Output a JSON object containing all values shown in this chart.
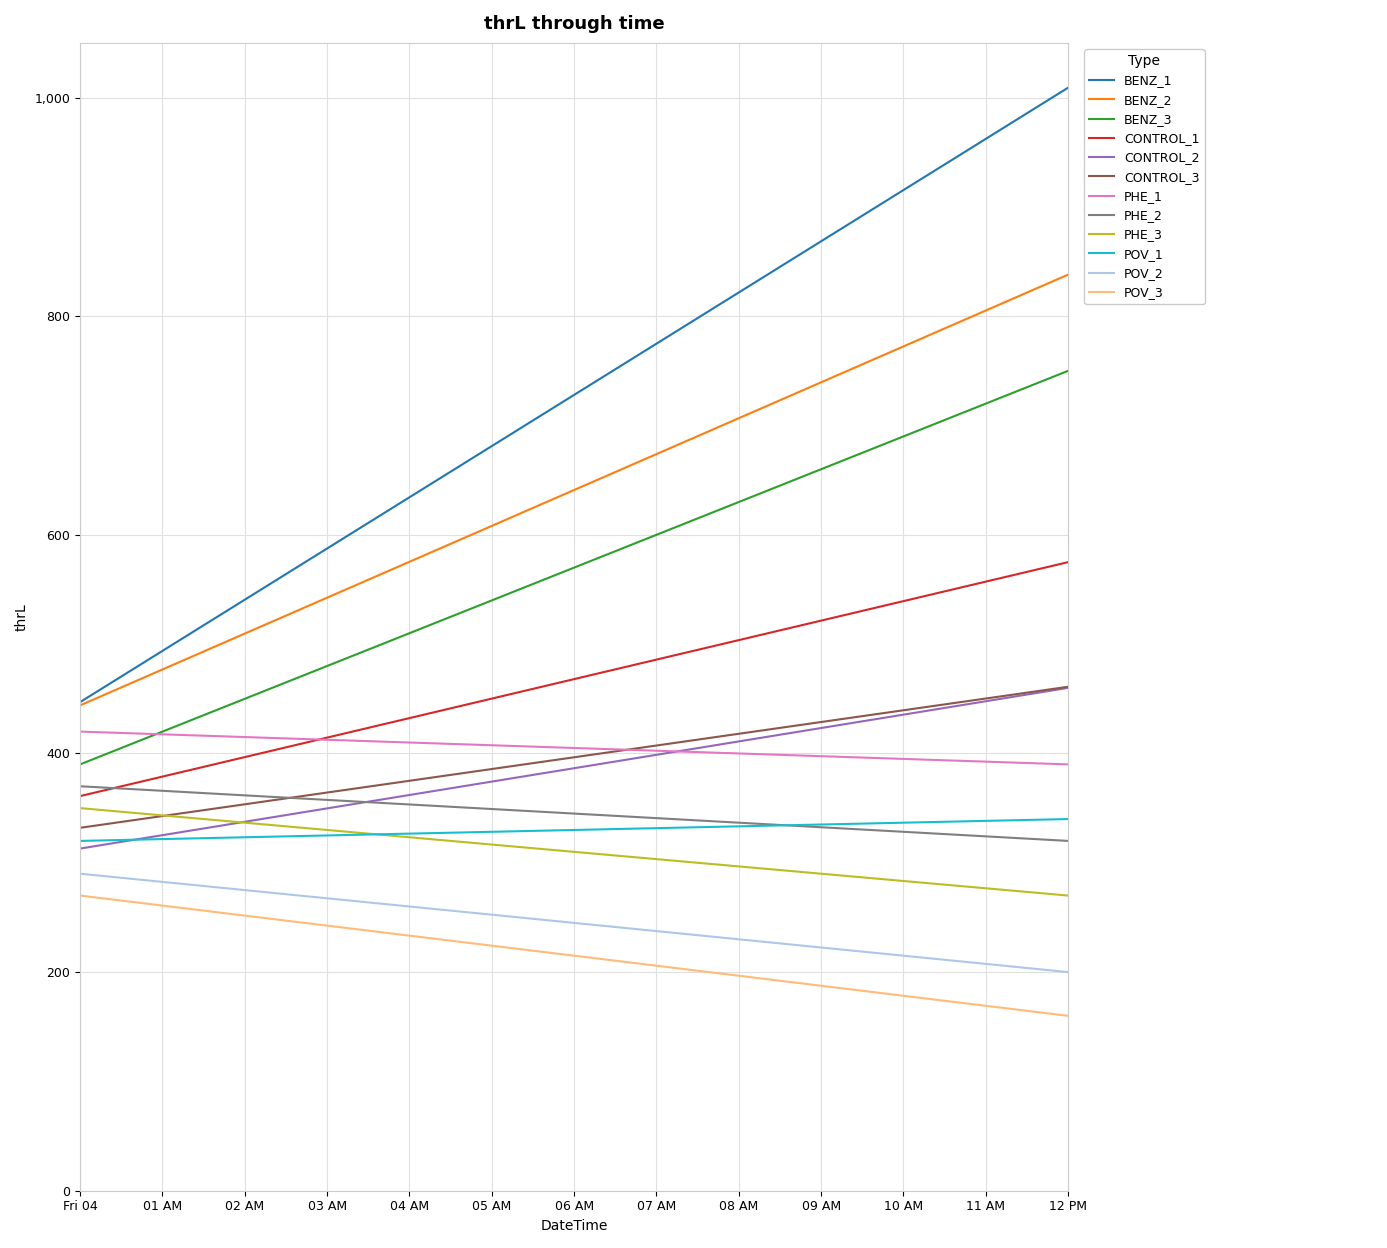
{
  "title": "thrL through time",
  "xlabel": "DateTime",
  "ylabel": "thrL",
  "ylim": [
    0,
    1050
  ],
  "yticks": [
    0,
    200,
    400,
    600,
    800,
    1000
  ],
  "xtick_labels": [
    "Fri 04",
    "01 AM",
    "02 AM",
    "03 AM",
    "04 AM",
    "05 AM",
    "06 AM",
    "07 AM",
    "08 AM",
    "09 AM",
    "10 AM",
    "11 AM",
    "12 PM"
  ],
  "legend_title": "Type",
  "series": [
    {
      "name": "BENZ_1",
      "color": "#1f77b4",
      "x": [
        0,
        12
      ],
      "y": [
        447,
        1009
      ]
    },
    {
      "name": "BENZ_2",
      "color": "#ff7f0e",
      "x": [
        0,
        12
      ],
      "y": [
        444,
        838
      ]
    },
    {
      "name": "BENZ_3",
      "color": "#2ca02c",
      "x": [
        0,
        12
      ],
      "y": [
        390,
        750
      ]
    },
    {
      "name": "CONTROL_1",
      "color": "#d62728",
      "x": [
        0,
        12
      ],
      "y": [
        361,
        575
      ]
    },
    {
      "name": "CONTROL_2",
      "color": "#9467bd",
      "x": [
        0,
        12
      ],
      "y": [
        313,
        460
      ]
    },
    {
      "name": "CONTROL_3",
      "color": "#8c564b",
      "x": [
        0,
        12
      ],
      "y": [
        332,
        461
      ]
    },
    {
      "name": "PHE_1",
      "color": "#e377c2",
      "x": [
        0,
        12
      ],
      "y": [
        420,
        390
      ]
    },
    {
      "name": "PHE_2",
      "color": "#7f7f7f",
      "x": [
        0,
        12
      ],
      "y": [
        370,
        320
      ]
    },
    {
      "name": "PHE_3",
      "color": "#bcbd22",
      "x": [
        0,
        12
      ],
      "y": [
        350,
        270
      ]
    },
    {
      "name": "POV_1",
      "color": "#17becf",
      "x": [
        0,
        12
      ],
      "y": [
        320,
        340
      ]
    },
    {
      "name": "POV_2",
      "color": "#aec7e8",
      "x": [
        0,
        12
      ],
      "y": [
        290,
        200
      ]
    },
    {
      "name": "POV_3",
      "color": "#ffbb78",
      "x": [
        0,
        12
      ],
      "y": [
        270,
        160
      ]
    }
  ],
  "bg_color": "#ffffff",
  "grid_color": "#e0e0e0",
  "title_fontsize": 13,
  "label_fontsize": 10,
  "tick_fontsize": 9,
  "legend_fontsize": 9
}
